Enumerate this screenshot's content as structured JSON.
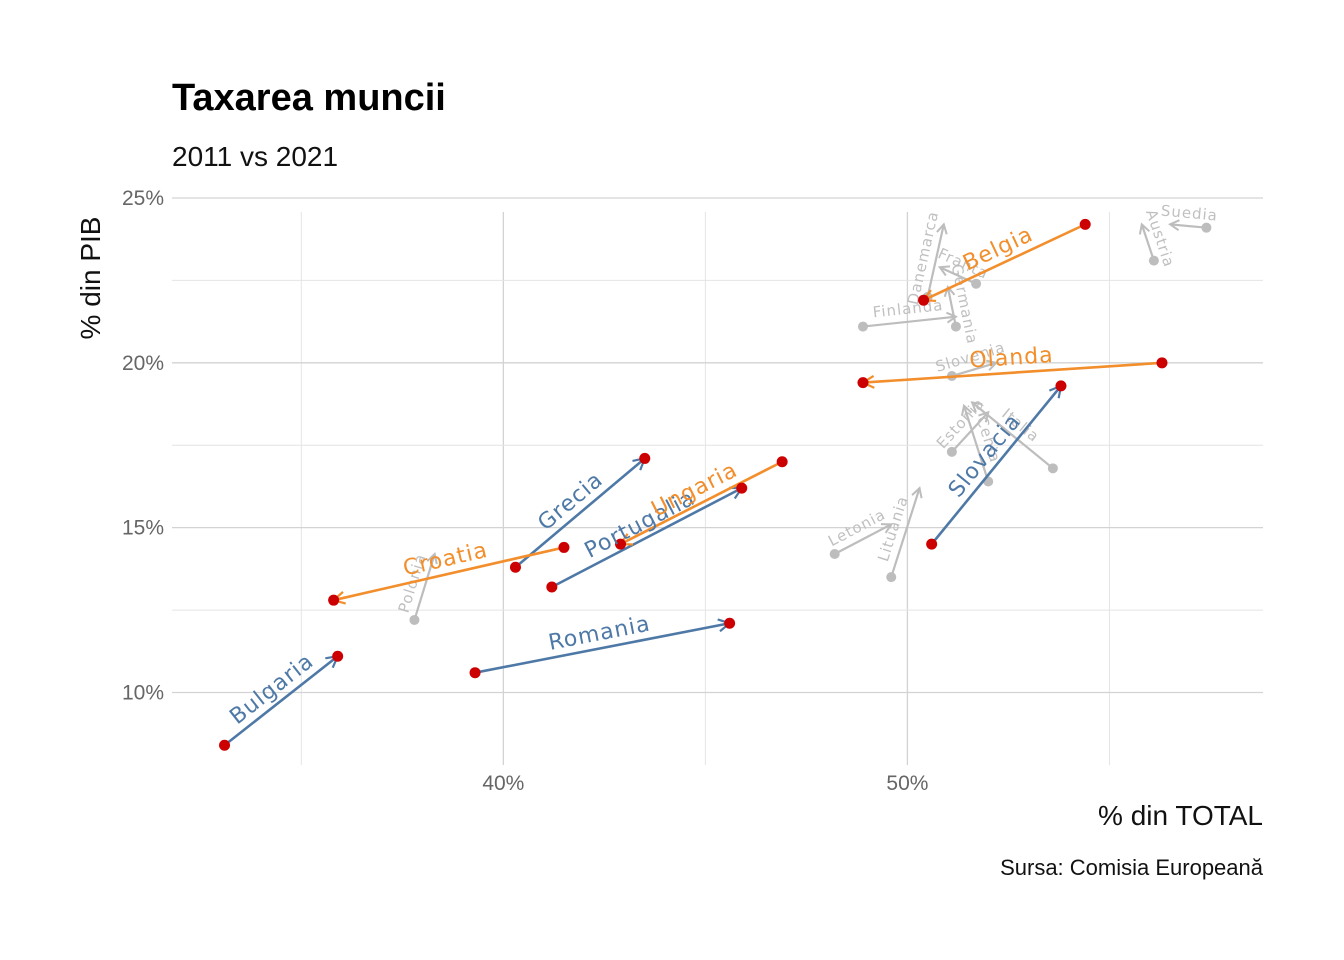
{
  "chart_data": {
    "type": "scatter",
    "title": "Taxarea muncii",
    "subtitle": "2011 vs 2021",
    "xlabel": "% din TOTAL",
    "ylabel": "% din PIB",
    "caption": "Sursa: Comisia Europeană",
    "xlim": [
      31.8,
      58.8
    ],
    "ylim": [
      7.8,
      25.0
    ],
    "x_ticks": [
      40,
      50
    ],
    "x_tick_labels": [
      "40%",
      "50%"
    ],
    "y_ticks": [
      10,
      15,
      20,
      25
    ],
    "y_tick_labels": [
      "10%",
      "15%",
      "20%",
      "25%"
    ],
    "grid": true,
    "colors": {
      "increase": "#4e79a7",
      "decrease": "#f28e2b",
      "background_countries": "#bdbdbd",
      "point": "#cc0000"
    },
    "highlighted": [
      {
        "name": "Bulgaria",
        "x_2011": 33.1,
        "y_2011": 8.4,
        "x_2021": 35.9,
        "y_2021": 11.1,
        "direction": "increase"
      },
      {
        "name": "Romania",
        "x_2011": 39.3,
        "y_2011": 10.6,
        "x_2021": 45.6,
        "y_2021": 12.1,
        "direction": "increase"
      },
      {
        "name": "Grecia",
        "x_2011": 40.3,
        "y_2011": 13.8,
        "x_2021": 43.5,
        "y_2021": 17.1,
        "direction": "increase"
      },
      {
        "name": "Portugalia",
        "x_2011": 41.2,
        "y_2011": 13.2,
        "x_2021": 45.9,
        "y_2021": 16.2,
        "direction": "increase"
      },
      {
        "name": "Slovacia",
        "x_2011": 50.6,
        "y_2011": 14.5,
        "x_2021": 53.8,
        "y_2021": 19.3,
        "direction": "increase"
      },
      {
        "name": "Croatia",
        "x_2011": 41.5,
        "y_2011": 14.4,
        "x_2021": 35.8,
        "y_2021": 12.8,
        "direction": "decrease"
      },
      {
        "name": "Ungaria",
        "x_2011": 46.9,
        "y_2011": 17.0,
        "x_2021": 42.9,
        "y_2021": 14.5,
        "direction": "decrease"
      },
      {
        "name": "Belgia",
        "x_2011": 54.4,
        "y_2011": 24.2,
        "x_2021": 50.4,
        "y_2021": 21.9,
        "direction": "decrease"
      },
      {
        "name": "Olanda",
        "x_2011": 56.3,
        "y_2011": 20.0,
        "x_2021": 48.9,
        "y_2021": 19.4,
        "direction": "decrease"
      }
    ],
    "background": [
      {
        "name": "Polonia",
        "x_2011": 37.8,
        "y_2011": 12.2,
        "x_2021": 38.3,
        "y_2021": 14.2
      },
      {
        "name": "Letonia",
        "x_2011": 48.2,
        "y_2011": 14.2,
        "x_2021": 49.6,
        "y_2021": 15.1
      },
      {
        "name": "Lituania",
        "x_2011": 49.6,
        "y_2011": 13.5,
        "x_2021": 50.3,
        "y_2021": 16.2
      },
      {
        "name": "Finlanda",
        "x_2011": 48.9,
        "y_2011": 21.1,
        "x_2021": 51.2,
        "y_2021": 21.4
      },
      {
        "name": "Danemarca",
        "x_2011": 50.5,
        "y_2011": 22.0,
        "x_2021": 50.9,
        "y_2021": 24.2
      },
      {
        "name": "Austria",
        "x_2011": 56.1,
        "y_2011": 23.1,
        "x_2021": 55.8,
        "y_2021": 24.2
      },
      {
        "name": "Suedia",
        "x_2011": 57.4,
        "y_2011": 24.1,
        "x_2021": 56.5,
        "y_2021": 24.2
      },
      {
        "name": "Slovenia",
        "x_2011": 51.1,
        "y_2011": 19.6,
        "x_2021": 52.2,
        "y_2021": 20.0
      },
      {
        "name": "Cehia",
        "x_2011": 52.0,
        "y_2011": 16.4,
        "x_2021": 51.4,
        "y_2021": 18.7
      },
      {
        "name": "Estonia",
        "x_2011": 51.1,
        "y_2011": 17.3,
        "x_2021": 52.0,
        "y_2021": 18.5
      },
      {
        "name": "Italia",
        "x_2011": 53.6,
        "y_2011": 16.8,
        "x_2021": 51.6,
        "y_2021": 18.8
      },
      {
        "name": "Germania",
        "x_2011": 51.2,
        "y_2011": 21.1,
        "x_2021": 51.0,
        "y_2021": 22.3
      },
      {
        "name": "Franta",
        "x_2011": 51.7,
        "y_2011": 22.4,
        "x_2021": 50.8,
        "y_2021": 22.9
      }
    ]
  }
}
